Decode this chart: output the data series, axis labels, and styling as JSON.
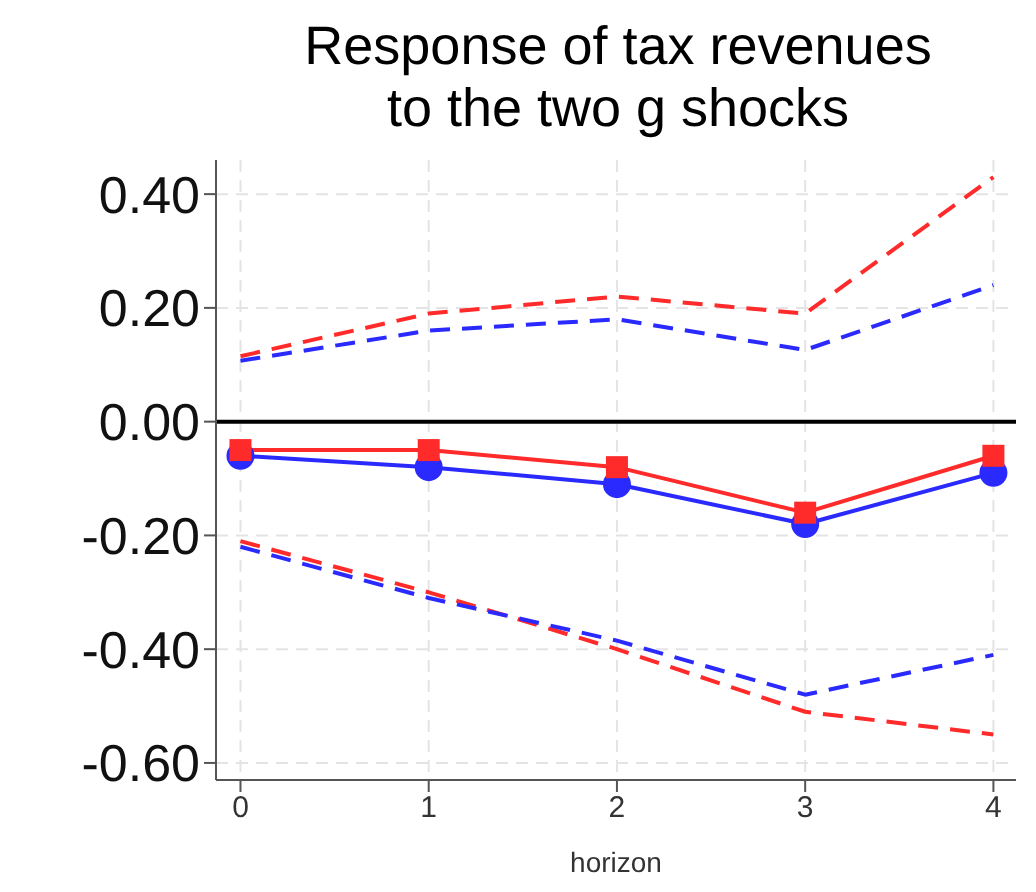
{
  "chart_data": {
    "type": "line",
    "title": "Response of tax revenues\nto the two g shocks",
    "xlabel": "horizon",
    "x": [
      0,
      1,
      2,
      3,
      4
    ],
    "xlim": [
      -0.13,
      4.12
    ],
    "xticks": [
      0,
      1,
      2,
      3,
      4
    ],
    "ylim": [
      -0.63,
      0.46
    ],
    "yticks": [
      {
        "value": 0.4,
        "label": "0.40"
      },
      {
        "value": 0.2,
        "label": "0.20"
      },
      {
        "value": 0,
        "label": "0.00"
      },
      {
        "value": -0.2,
        "label": "-0.20"
      },
      {
        "value": -0.4,
        "label": "-0.40"
      },
      {
        "value": -0.6,
        "label": "-0.60"
      }
    ],
    "grid": true,
    "ref_lines": [
      {
        "axis": "y",
        "value": 0,
        "color": "#000000",
        "line_style": "solid"
      }
    ],
    "series": [
      {
        "color": "#ff2a2a",
        "values": [
          0.115,
          0.19,
          0.22,
          0.19,
          0.43
        ],
        "line_style": "dashed",
        "marker": "none"
      },
      {
        "color": "#2a2aff",
        "values": [
          0.107,
          0.16,
          0.18,
          0.126,
          0.24
        ],
        "line_style": "dashed",
        "marker": "none"
      },
      {
        "color": "#2a2aff",
        "values": [
          -0.06,
          -0.08,
          -0.11,
          -0.18,
          -0.09
        ],
        "line_style": "solid",
        "marker": "circle"
      },
      {
        "color": "#ff2a2a",
        "values": [
          -0.05,
          -0.05,
          -0.08,
          -0.16,
          -0.06
        ],
        "line_style": "solid",
        "marker": "square"
      },
      {
        "color": "#ff2a2a",
        "values": [
          -0.21,
          -0.3,
          -0.4,
          -0.51,
          -0.55
        ],
        "line_style": "dashed",
        "marker": "none"
      },
      {
        "color": "#2a2aff",
        "values": [
          -0.22,
          -0.31,
          -0.385,
          -0.48,
          -0.41
        ],
        "line_style": "dashed",
        "marker": "none"
      }
    ]
  }
}
